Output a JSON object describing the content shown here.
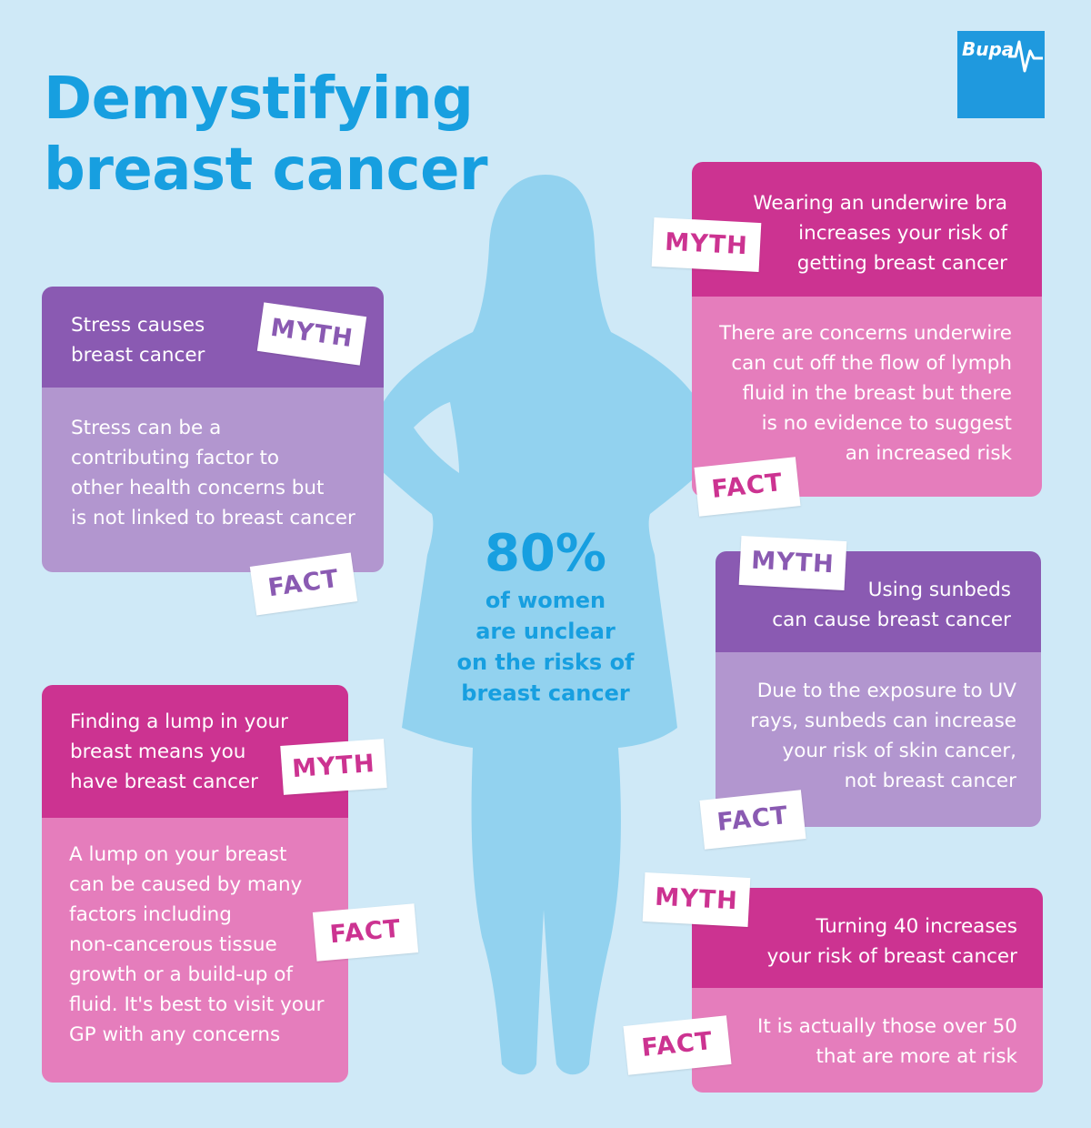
{
  "title": "Demystifying\nbreast cancer",
  "logo": {
    "text": "Bupa"
  },
  "stat": {
    "value": "80%",
    "text": "of women\nare unclear\non the risks of\nbreast cancer"
  },
  "tags": {
    "myth": "MYTH",
    "fact": "FACT"
  },
  "colors": {
    "title": "#179fe0",
    "background": "#cfe9f7",
    "silhouette": "#92d2ef",
    "purple_dark": "#8a5ab2",
    "purple_light": "#b296cf",
    "pink_dark": "#cc3391",
    "pink_light": "#e57dbc"
  },
  "cards": {
    "stress": {
      "myth": "Stress causes\nbreast cancer",
      "fact": "Stress can be a\ncontributing factor to\nother health concerns but\nis not linked to breast cancer"
    },
    "lump": {
      "myth": "Finding a lump in your\nbreast means you\nhave breast cancer",
      "fact": "A lump on your breast\ncan be caused by many\nfactors including\nnon-cancerous tissue\ngrowth or a build-up of\nfluid. It's best to visit your\nGP with any concerns"
    },
    "underwire": {
      "myth": "Wearing an underwire bra\nincreases your risk of\ngetting breast cancer",
      "fact": "There are concerns underwire\ncan cut off the flow of lymph\nfluid in the breast but there\nis no evidence to suggest\nan increased risk"
    },
    "sunbeds": {
      "myth": "Using sunbeds\ncan cause breast cancer",
      "fact": "Due to the exposure to UV\nrays, sunbeds can increase\nyour risk of skin cancer,\nnot breast cancer"
    },
    "age": {
      "myth": "Turning 40 increases\nyour risk of breast cancer",
      "fact": "It is actually those over 50\nthat are more at risk"
    }
  }
}
